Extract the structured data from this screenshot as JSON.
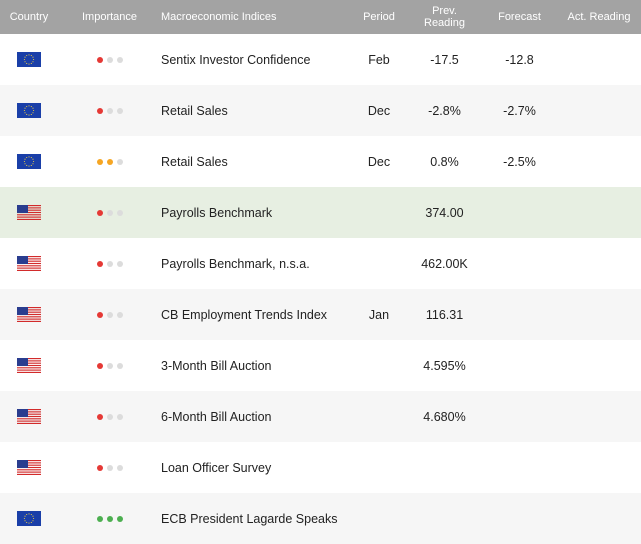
{
  "header": {
    "country": "Country",
    "importance": "Importance",
    "indices": "Macroeconomic Indices",
    "period": "Period",
    "prev_line1": "Prev.",
    "prev_line2": "Reading",
    "forecast": "Forecast",
    "actual": "Act. Reading"
  },
  "colors": {
    "high": "#e53935",
    "medium": "#f6a623",
    "low": "#4caf50",
    "off": "#dcdcdc"
  },
  "rows": [
    {
      "country": "EU",
      "importance": [
        "high",
        "off",
        "off"
      ],
      "name": "Sentix Investor Confidence",
      "period": "Feb",
      "prev": "-17.5",
      "forecast": "-12.8",
      "actual": ""
    },
    {
      "country": "EU",
      "importance": [
        "high",
        "off",
        "off"
      ],
      "name": "Retail Sales",
      "period": "Dec",
      "prev": "-2.8%",
      "forecast": "-2.7%",
      "actual": ""
    },
    {
      "country": "EU",
      "importance": [
        "medium",
        "medium",
        "off"
      ],
      "name": "Retail Sales",
      "period": "Dec",
      "prev": "0.8%",
      "forecast": "-2.5%",
      "actual": ""
    },
    {
      "country": "US",
      "importance": [
        "high",
        "off",
        "off"
      ],
      "name": "Payrolls Benchmark",
      "period": "",
      "prev": "374.00",
      "forecast": "",
      "actual": ""
    },
    {
      "country": "US",
      "importance": [
        "high",
        "off",
        "off"
      ],
      "name": "Payrolls Benchmark, n.s.a.",
      "period": "",
      "prev": "462.00K",
      "forecast": "",
      "actual": ""
    },
    {
      "country": "US",
      "importance": [
        "high",
        "off",
        "off"
      ],
      "name": "CB Employment Trends Index",
      "period": "Jan",
      "prev": "116.31",
      "forecast": "",
      "actual": ""
    },
    {
      "country": "US",
      "importance": [
        "high",
        "off",
        "off"
      ],
      "name": "3-Month Bill Auction",
      "period": "",
      "prev": "4.595%",
      "forecast": "",
      "actual": ""
    },
    {
      "country": "US",
      "importance": [
        "high",
        "off",
        "off"
      ],
      "name": "6-Month Bill Auction",
      "period": "",
      "prev": "4.680%",
      "forecast": "",
      "actual": ""
    },
    {
      "country": "US",
      "importance": [
        "high",
        "off",
        "off"
      ],
      "name": "Loan Officer Survey",
      "period": "",
      "prev": "",
      "forecast": "",
      "actual": ""
    },
    {
      "country": "EU",
      "importance": [
        "low",
        "low",
        "low"
      ],
      "name": "ECB President Lagarde Speaks",
      "period": "",
      "prev": "",
      "forecast": "",
      "actual": ""
    }
  ]
}
